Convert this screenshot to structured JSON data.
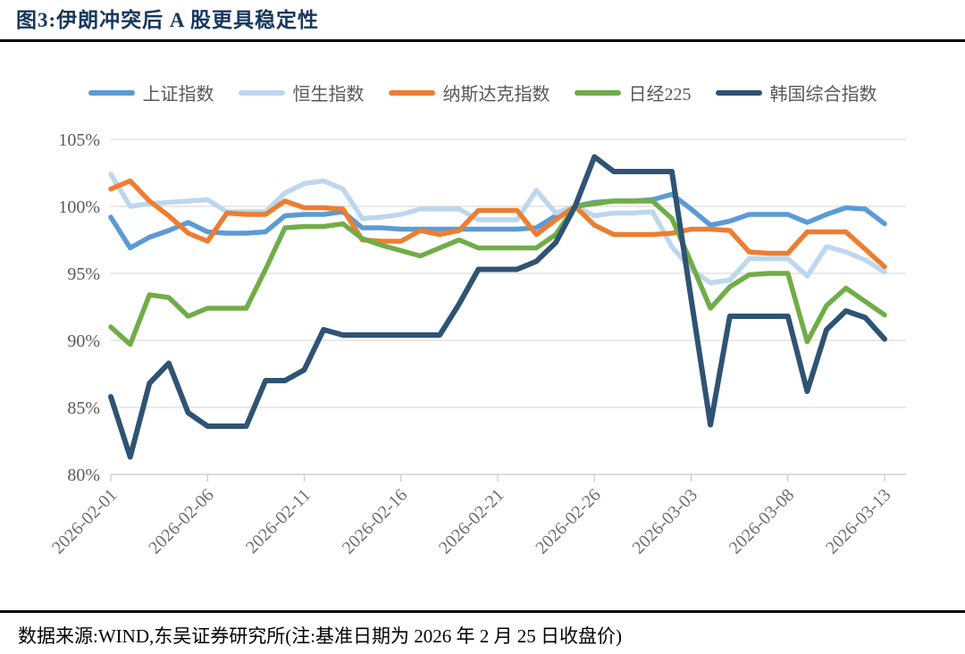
{
  "figure": {
    "title": "图3:伊朗冲突后 A 股更具稳定性",
    "source_note": "数据来源:WIND,东吴证券研究所(注:基准日期为 2026 年 2 月 25 日收盘价)"
  },
  "chart_data": {
    "type": "line",
    "title": "",
    "xlabel": "",
    "ylabel": "",
    "ylim": [
      80,
      105
    ],
    "grid": true,
    "legend_position": "top",
    "note": "All indices rebased to 100% at 2026-02-25 close",
    "y_tick_labels": [
      "105%",
      "100%",
      "95%",
      "90%",
      "85%",
      "80%"
    ],
    "x_tick_labels": [
      "2026-02-01",
      "2026-02-06",
      "2026-02-11",
      "2026-02-16",
      "2026-02-21",
      "2026-02-26",
      "2026-03-03",
      "2026-03-08",
      "2026-03-13"
    ],
    "x": [
      "2026-02-01",
      "2026-02-02",
      "2026-02-03",
      "2026-02-04",
      "2026-02-05",
      "2026-02-06",
      "2026-02-07",
      "2026-02-08",
      "2026-02-09",
      "2026-02-10",
      "2026-02-11",
      "2026-02-12",
      "2026-02-13",
      "2026-02-14",
      "2026-02-15",
      "2026-02-16",
      "2026-02-17",
      "2026-02-18",
      "2026-02-19",
      "2026-02-20",
      "2026-02-21",
      "2026-02-22",
      "2026-02-23",
      "2026-02-24",
      "2026-02-25",
      "2026-02-26",
      "2026-02-27",
      "2026-02-28",
      "2026-03-01",
      "2026-03-02",
      "2026-03-03",
      "2026-03-04",
      "2026-03-05",
      "2026-03-06",
      "2026-03-07",
      "2026-03-08",
      "2026-03-09",
      "2026-03-10",
      "2026-03-11",
      "2026-03-12",
      "2026-03-13"
    ],
    "series": [
      {
        "name": "上证指数",
        "color": "#5B9BD5",
        "width": 5.5,
        "values": [
          99.2,
          96.9,
          97.7,
          98.2,
          98.8,
          98.1,
          98.0,
          98.0,
          98.1,
          99.3,
          99.4,
          99.4,
          99.6,
          98.4,
          98.4,
          98.3,
          98.3,
          98.3,
          98.3,
          98.3,
          98.3,
          98.3,
          98.4,
          99.3,
          100.0,
          100.3,
          100.4,
          100.4,
          100.5,
          100.9,
          99.8,
          98.6,
          98.9,
          99.4,
          99.4,
          99.4,
          98.8,
          99.4,
          99.9,
          99.8,
          98.7
        ]
      },
      {
        "name": "恒生指数",
        "color": "#BDD7EE",
        "width": 5.5,
        "values": [
          102.4,
          100.0,
          100.2,
          100.3,
          100.4,
          100.5,
          99.6,
          99.6,
          99.6,
          101.0,
          101.7,
          101.9,
          101.3,
          99.1,
          99.2,
          99.4,
          99.8,
          99.8,
          99.8,
          99.0,
          99.0,
          99.0,
          101.2,
          99.5,
          100.0,
          99.3,
          99.5,
          99.5,
          99.6,
          97.0,
          95.3,
          94.3,
          94.5,
          96.1,
          96.1,
          96.1,
          94.8,
          97.0,
          96.6,
          96.0,
          95.1
        ]
      },
      {
        "name": "纳斯达克指数",
        "color": "#ED7D31",
        "width": 5.5,
        "values": [
          101.3,
          101.9,
          100.4,
          99.3,
          98.0,
          97.4,
          99.5,
          99.4,
          99.4,
          100.4,
          99.9,
          99.9,
          99.8,
          97.5,
          97.4,
          97.4,
          98.2,
          97.9,
          98.2,
          99.7,
          99.7,
          99.7,
          97.9,
          99.0,
          100.0,
          98.6,
          97.9,
          97.9,
          97.9,
          98.0,
          98.3,
          98.3,
          98.2,
          96.6,
          96.5,
          96.5,
          98.1,
          98.1,
          98.1,
          96.8,
          95.5
        ]
      },
      {
        "name": "日经225",
        "color": "#70AD47",
        "width": 5.5,
        "values": [
          91.0,
          89.7,
          93.4,
          93.2,
          91.8,
          92.4,
          92.4,
          92.4,
          95.3,
          98.4,
          98.5,
          98.5,
          98.7,
          97.6,
          97.1,
          96.7,
          96.3,
          96.9,
          97.5,
          96.9,
          96.9,
          96.9,
          96.9,
          97.9,
          100.0,
          100.2,
          100.4,
          100.4,
          100.4,
          99.1,
          95.8,
          92.4,
          94.0,
          94.9,
          95.0,
          95.0,
          89.9,
          92.6,
          93.9,
          92.9,
          91.9
        ]
      },
      {
        "name": "韩国综合指数",
        "color": "#2F5373",
        "width": 6,
        "values": [
          85.8,
          81.3,
          86.8,
          88.3,
          84.6,
          83.6,
          83.6,
          83.6,
          87.0,
          87.0,
          87.8,
          90.8,
          90.4,
          90.4,
          90.4,
          90.4,
          90.4,
          90.4,
          92.7,
          95.3,
          95.3,
          95.3,
          95.9,
          97.3,
          100.0,
          103.7,
          102.6,
          102.6,
          102.6,
          102.6,
          93.1,
          83.7,
          91.8,
          91.8,
          91.8,
          91.8,
          86.2,
          90.8,
          92.2,
          91.7,
          90.1
        ]
      }
    ]
  }
}
